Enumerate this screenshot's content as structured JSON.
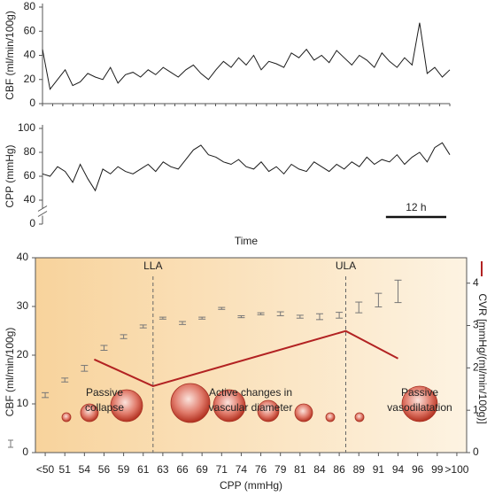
{
  "chart_data": [
    {
      "type": "line",
      "y_label": "CBF (ml/min/100g)",
      "x": [
        0,
        1.5,
        3,
        4.5,
        6,
        7.5,
        9,
        10.5,
        12,
        13.5,
        15,
        16.5,
        18,
        19.5,
        21,
        22.5,
        24,
        25.5,
        27,
        28.5,
        30,
        31.5,
        33,
        34.5,
        36,
        37.5,
        39,
        40.5,
        42,
        43.5,
        45,
        46.5,
        48,
        49.5,
        51,
        52.5,
        54,
        55.5,
        57,
        58.5,
        60,
        61.5,
        63,
        64.5,
        66,
        67.5,
        69,
        70.5,
        72,
        73.5,
        75,
        76.5,
        78,
        79.5,
        81
      ],
      "xlim": [
        0,
        81
      ],
      "values": [
        45,
        12,
        20,
        28,
        15,
        18,
        25,
        22,
        20,
        30,
        17,
        24,
        26,
        22,
        28,
        24,
        30,
        26,
        22,
        28,
        32,
        25,
        20,
        28,
        35,
        30,
        38,
        32,
        40,
        28,
        35,
        33,
        30,
        42,
        38,
        45,
        36,
        40,
        34,
        44,
        38,
        32,
        40,
        36,
        30,
        42,
        35,
        30,
        38,
        32,
        67,
        25,
        30,
        22,
        28
      ],
      "color": "#1a1a1a",
      "ylim": [
        0,
        80
      ],
      "yticks": [
        0,
        20,
        40,
        60,
        80
      ]
    },
    {
      "type": "line",
      "y_label": "CPP (mmHg)",
      "x_label": "Time",
      "x": [
        0,
        1.5,
        3,
        4.5,
        6,
        7.5,
        9,
        10.5,
        12,
        13.5,
        15,
        16.5,
        18,
        19.5,
        21,
        22.5,
        24,
        25.5,
        27,
        28.5,
        30,
        31.5,
        33,
        34.5,
        36,
        37.5,
        39,
        40.5,
        42,
        43.5,
        45,
        46.5,
        48,
        49.5,
        51,
        52.5,
        54,
        55.5,
        57,
        58.5,
        60,
        61.5,
        63,
        64.5,
        66,
        67.5,
        69,
        70.5,
        72,
        73.5,
        75,
        76.5,
        78,
        79.5,
        81
      ],
      "xlim": [
        0,
        81
      ],
      "values": [
        62,
        60,
        68,
        64,
        55,
        70,
        58,
        48,
        66,
        62,
        68,
        64,
        62,
        66,
        70,
        64,
        72,
        68,
        66,
        74,
        82,
        86,
        78,
        76,
        72,
        70,
        74,
        68,
        66,
        72,
        64,
        68,
        62,
        70,
        66,
        64,
        72,
        68,
        64,
        70,
        66,
        72,
        68,
        76,
        70,
        74,
        72,
        78,
        70,
        76,
        80,
        72,
        84,
        88,
        78
      ],
      "color": "#1a1a1a",
      "ylim": [
        0,
        100
      ],
      "yticks": [
        0,
        40,
        60,
        80,
        100
      ],
      "axis_break": true,
      "scale_bar": {
        "value": 12,
        "label": "12 h"
      }
    },
    {
      "type": "errorbar",
      "x_label": "CPP (mmHg)",
      "categories": [
        "<50",
        "51",
        "54",
        "56",
        "59",
        "61",
        "63",
        "66",
        "69",
        "71",
        "74",
        "76",
        "79",
        "81",
        "84",
        "86",
        "89",
        "91",
        "94",
        "96",
        "99",
        ">100"
      ],
      "series": [
        {
          "name": "CBF (ml/min/100g)",
          "color": "#777777",
          "values": [
            11.8,
            14.9,
            17.3,
            21.5,
            23.8,
            25.9,
            27.6,
            26.6,
            27.6,
            29.6,
            27.9,
            28.5,
            28.5,
            27.9,
            27.9,
            28.2,
            29.8,
            31.3,
            33.1,
            null,
            null,
            null
          ],
          "errors": [
            0.5,
            0.4,
            0.6,
            0.5,
            0.4,
            0.3,
            0.2,
            0.3,
            0.2,
            0.2,
            0.2,
            0.2,
            0.4,
            0.3,
            0.6,
            0.6,
            1.1,
            1.4,
            2.3,
            null,
            null,
            null
          ]
        },
        {
          "name": "CVR [mmHg/(ml/min/100g)]",
          "color": "#b22222",
          "axis": "y2",
          "x": [
            55,
            62,
            87,
            94
          ],
          "values": [
            2.2,
            1.57,
            2.87,
            2.22
          ]
        }
      ],
      "ylim": [
        0,
        40
      ],
      "yticks": [
        0,
        10,
        20,
        30,
        40
      ],
      "y2lim": [
        0,
        4.6
      ],
      "y2ticks": [
        0,
        1,
        2,
        3,
        4
      ],
      "reference_lines": [
        {
          "label": "LLA",
          "x": 62
        },
        {
          "label": "ULA",
          "x": 87
        }
      ],
      "annotations": [
        [
          "Passive",
          "collapse"
        ],
        [
          "Active changes in",
          "vascular diameter"
        ],
        [
          "Passive",
          "vasodilatation"
        ]
      ]
    }
  ]
}
